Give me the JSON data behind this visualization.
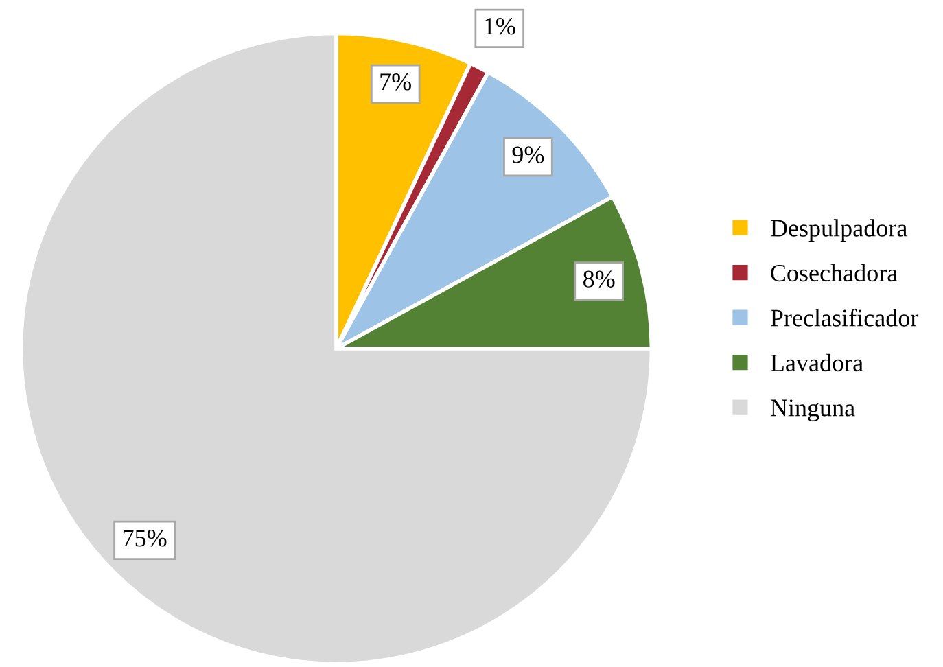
{
  "chart_data": {
    "type": "pie",
    "categories": [
      "Despulpadora",
      "Cosechadora",
      "Preclasificador",
      "Lavadora",
      "Ninguna"
    ],
    "values": [
      7,
      1,
      9,
      8,
      75
    ],
    "colors": [
      "#ffc000",
      "#a52a36",
      "#9dc3e6",
      "#548235",
      "#d9d9d9"
    ],
    "value_labels": [
      "7%",
      "1%",
      "9%",
      "8%",
      "75%"
    ],
    "legend": "right"
  }
}
